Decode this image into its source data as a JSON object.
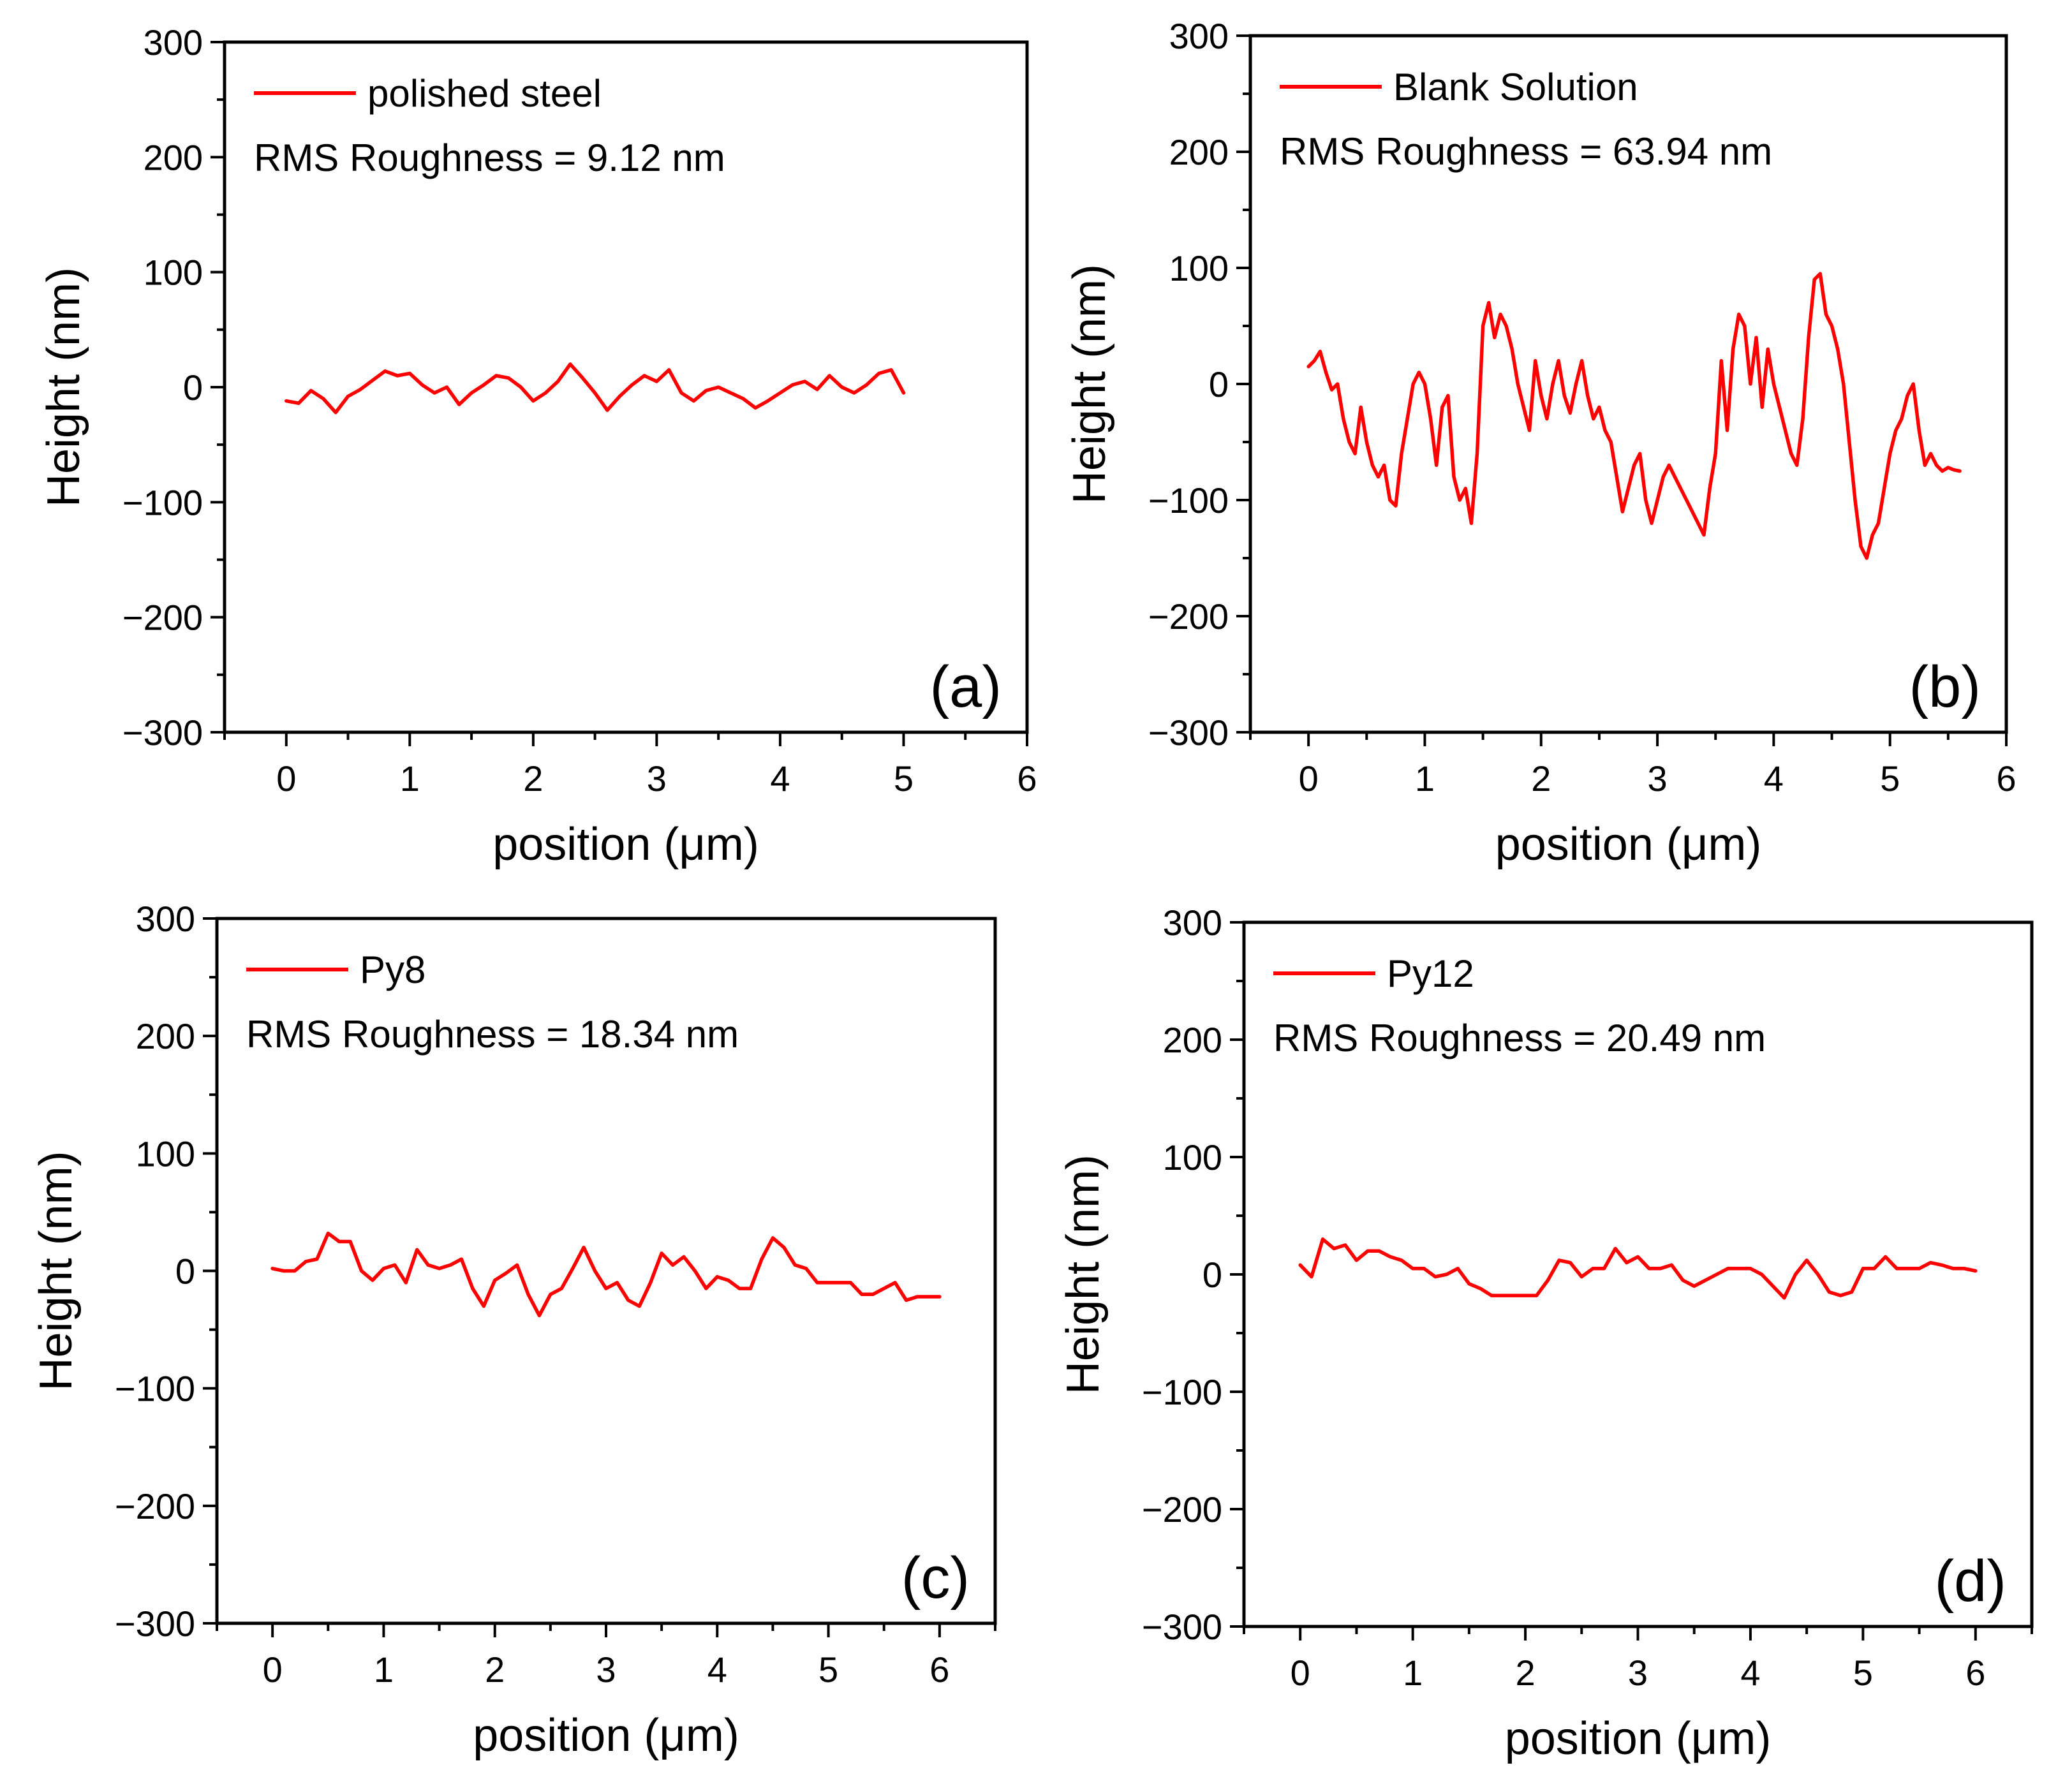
{
  "figure": {
    "color_line": "#ff0000"
  },
  "chart_data": [
    {
      "id": "a",
      "type": "line",
      "panel_label": "(a)",
      "xlabel": "position (μm)",
      "ylabel": "Height (nm)",
      "xlim": [
        -0.5,
        6.0
      ],
      "ylim": [
        -300,
        300
      ],
      "xticks": [
        0,
        1,
        2,
        3,
        4,
        5,
        6
      ],
      "yticks": [
        -300,
        -200,
        -100,
        0,
        100,
        200,
        300
      ],
      "ytick_labels": [
        "−300",
        "−200",
        "−100",
        "0",
        "100",
        "200",
        "300"
      ],
      "annotation": "RMS Roughness = 9.12 nm",
      "series": [
        {
          "name": "polished steel",
          "color": "#ff0000",
          "x": [
            0,
            0.1,
            0.2,
            0.3,
            0.4,
            0.5,
            0.6,
            0.7,
            0.8,
            0.9,
            1.0,
            1.1,
            1.2,
            1.3,
            1.4,
            1.5,
            1.6,
            1.7,
            1.8,
            1.9,
            2.0,
            2.1,
            2.2,
            2.3,
            2.4,
            2.5,
            2.6,
            2.7,
            2.8,
            2.9,
            3.0,
            3.1,
            3.2,
            3.3,
            3.4,
            3.5,
            3.6,
            3.7,
            3.8,
            3.9,
            4.0,
            4.1,
            4.2,
            4.3,
            4.4,
            4.5,
            4.6,
            4.7,
            4.8,
            4.9,
            5.0
          ],
          "y": [
            -12,
            -14,
            -3,
            -10,
            -22,
            -8,
            -2,
            6,
            14,
            10,
            12,
            2,
            -5,
            0,
            -15,
            -5,
            2,
            10,
            8,
            0,
            -12,
            -5,
            5,
            20,
            8,
            -5,
            -20,
            -8,
            2,
            10,
            5,
            15,
            -5,
            -12,
            -3,
            0,
            -5,
            -10,
            -18,
            -12,
            -5,
            2,
            5,
            -2,
            10,
            0,
            -5,
            2,
            12,
            15,
            -5
          ]
        }
      ]
    },
    {
      "id": "b",
      "type": "line",
      "panel_label": "(b)",
      "xlabel": "position (μm)",
      "ylabel": "Height (nm)",
      "xlim": [
        -0.5,
        6.0
      ],
      "ylim": [
        -300,
        300
      ],
      "xticks": [
        0,
        1,
        2,
        3,
        4,
        5,
        6
      ],
      "yticks": [
        -300,
        -200,
        -100,
        0,
        100,
        200,
        300
      ],
      "ytick_labels": [
        "−300",
        "−200",
        "−100",
        "0",
        "100",
        "200",
        "300"
      ],
      "annotation": "RMS Roughness = 63.94 nm",
      "series": [
        {
          "name": "Blank Solution",
          "color": "#ff0000",
          "x": [
            0,
            0.05,
            0.1,
            0.15,
            0.2,
            0.25,
            0.3,
            0.35,
            0.4,
            0.45,
            0.5,
            0.55,
            0.6,
            0.65,
            0.7,
            0.75,
            0.8,
            0.85,
            0.9,
            0.95,
            1.0,
            1.05,
            1.1,
            1.15,
            1.2,
            1.25,
            1.3,
            1.35,
            1.4,
            1.45,
            1.5,
            1.55,
            1.6,
            1.65,
            1.7,
            1.75,
            1.8,
            1.85,
            1.9,
            1.95,
            2.0,
            2.05,
            2.1,
            2.15,
            2.2,
            2.25,
            2.3,
            2.35,
            2.4,
            2.45,
            2.5,
            2.55,
            2.6,
            2.65,
            2.7,
            2.75,
            2.8,
            2.85,
            2.9,
            2.95,
            3.0,
            3.05,
            3.1,
            3.15,
            3.2,
            3.25,
            3.3,
            3.35,
            3.4,
            3.45,
            3.5,
            3.55,
            3.6,
            3.65,
            3.7,
            3.75,
            3.8,
            3.85,
            3.9,
            3.95,
            4.0,
            4.05,
            4.1,
            4.15,
            4.2,
            4.25,
            4.3,
            4.35,
            4.4,
            4.45,
            4.5,
            4.55,
            4.6,
            4.65,
            4.7,
            4.75,
            4.8,
            4.85,
            4.9,
            4.95,
            5.0,
            5.05,
            5.1,
            5.15,
            5.2,
            5.25,
            5.3,
            5.35,
            5.4,
            5.45,
            5.5,
            5.55,
            5.6
          ],
          "y": [
            15,
            20,
            28,
            10,
            -5,
            0,
            -30,
            -50,
            -60,
            -20,
            -50,
            -70,
            -80,
            -70,
            -100,
            -105,
            -60,
            -30,
            0,
            10,
            0,
            -30,
            -70,
            -20,
            -10,
            -80,
            -100,
            -90,
            -120,
            -60,
            50,
            70,
            40,
            60,
            50,
            30,
            0,
            -20,
            -40,
            20,
            -10,
            -30,
            0,
            20,
            -10,
            -25,
            0,
            20,
            -10,
            -30,
            -20,
            -40,
            -50,
            -80,
            -110,
            -90,
            -70,
            -60,
            -100,
            -120,
            -100,
            -80,
            -70,
            -80,
            -90,
            -100,
            -110,
            -120,
            -130,
            -90,
            -60,
            20,
            -40,
            30,
            60,
            50,
            0,
            40,
            -20,
            30,
            0,
            -20,
            -40,
            -60,
            -70,
            -30,
            40,
            90,
            95,
            60,
            50,
            30,
            0,
            -50,
            -100,
            -140,
            -150,
            -130,
            -120,
            -90,
            -60,
            -40,
            -30,
            -10,
            0,
            -40,
            -70,
            -60,
            -70,
            -75,
            -72,
            -74,
            -75
          ]
        }
      ]
    },
    {
      "id": "c",
      "type": "line",
      "panel_label": "(c)",
      "xlabel": "position (μm)",
      "ylabel": "Height (nm)",
      "xlim": [
        -0.5,
        6.5
      ],
      "ylim": [
        -300,
        300
      ],
      "xticks": [
        0,
        1,
        2,
        3,
        4,
        5,
        6
      ],
      "yticks": [
        -300,
        -200,
        -100,
        0,
        100,
        200,
        300
      ],
      "ytick_labels": [
        "−300",
        "−200",
        "−100",
        "0",
        "100",
        "200",
        "300"
      ],
      "annotation": "RMS Roughness = 18.34 nm",
      "series": [
        {
          "name": "Py8",
          "color": "#ff0000",
          "x": [
            0,
            0.1,
            0.2,
            0.3,
            0.4,
            0.5,
            0.6,
            0.7,
            0.8,
            0.9,
            1.0,
            1.1,
            1.2,
            1.3,
            1.4,
            1.5,
            1.6,
            1.7,
            1.8,
            1.9,
            2.0,
            2.1,
            2.2,
            2.3,
            2.4,
            2.5,
            2.6,
            2.7,
            2.8,
            2.9,
            3.0,
            3.1,
            3.2,
            3.3,
            3.4,
            3.5,
            3.6,
            3.7,
            3.8,
            3.9,
            4.0,
            4.1,
            4.2,
            4.3,
            4.4,
            4.5,
            4.6,
            4.7,
            4.8,
            4.9,
            5.0,
            5.1,
            5.2,
            5.3,
            5.4,
            5.5,
            5.6,
            5.7,
            5.8,
            5.9,
            6.0
          ],
          "y": [
            2,
            0,
            0,
            8,
            10,
            32,
            25,
            25,
            0,
            -8,
            2,
            5,
            -10,
            18,
            5,
            2,
            5,
            10,
            -15,
            -30,
            -8,
            -2,
            5,
            -20,
            -38,
            -20,
            -15,
            2,
            20,
            0,
            -15,
            -10,
            -25,
            -30,
            -10,
            15,
            5,
            12,
            0,
            -15,
            -5,
            -8,
            -15,
            -15,
            10,
            28,
            20,
            5,
            2,
            -10,
            -10,
            -10,
            -10,
            -20,
            -20,
            -15,
            -10,
            -25,
            -22,
            -22,
            -22
          ]
        }
      ]
    },
    {
      "id": "d",
      "type": "line",
      "panel_label": "(d)",
      "xlabel": "position (μm)",
      "ylabel": "Height (nm)",
      "xlim": [
        -0.5,
        6.5
      ],
      "ylim": [
        -300,
        300
      ],
      "xticks": [
        0,
        1,
        2,
        3,
        4,
        5,
        6
      ],
      "yticks": [
        -300,
        -200,
        -100,
        0,
        100,
        200,
        300
      ],
      "ytick_labels": [
        "−300",
        "−200",
        "−100",
        "0",
        "100",
        "200",
        "300"
      ],
      "annotation": "RMS Roughness = 20.49 nm",
      "series": [
        {
          "name": "Py12",
          "color": "#ff0000",
          "x": [
            0,
            0.1,
            0.2,
            0.3,
            0.4,
            0.5,
            0.6,
            0.7,
            0.8,
            0.9,
            1.0,
            1.1,
            1.2,
            1.3,
            1.4,
            1.5,
            1.6,
            1.7,
            1.8,
            1.9,
            2.0,
            2.1,
            2.2,
            2.3,
            2.4,
            2.5,
            2.6,
            2.7,
            2.8,
            2.9,
            3.0,
            3.1,
            3.2,
            3.3,
            3.4,
            3.5,
            3.6,
            3.7,
            3.8,
            3.9,
            4.0,
            4.1,
            4.2,
            4.3,
            4.4,
            4.5,
            4.6,
            4.7,
            4.8,
            4.9,
            5.0,
            5.1,
            5.2,
            5.3,
            5.4,
            5.5,
            5.6,
            5.7,
            5.8,
            5.9,
            6.0
          ],
          "y": [
            8,
            -2,
            30,
            22,
            25,
            12,
            20,
            20,
            15,
            12,
            5,
            5,
            -2,
            0,
            5,
            -8,
            -12,
            -18,
            -18,
            -18,
            -18,
            -18,
            -5,
            12,
            10,
            -2,
            5,
            5,
            22,
            10,
            15,
            5,
            5,
            8,
            -5,
            -10,
            -5,
            0,
            5,
            5,
            5,
            0,
            -10,
            -20,
            0,
            12,
            0,
            -15,
            -18,
            -15,
            5,
            5,
            15,
            5,
            5,
            5,
            10,
            8,
            5,
            5,
            3
          ]
        }
      ]
    }
  ]
}
